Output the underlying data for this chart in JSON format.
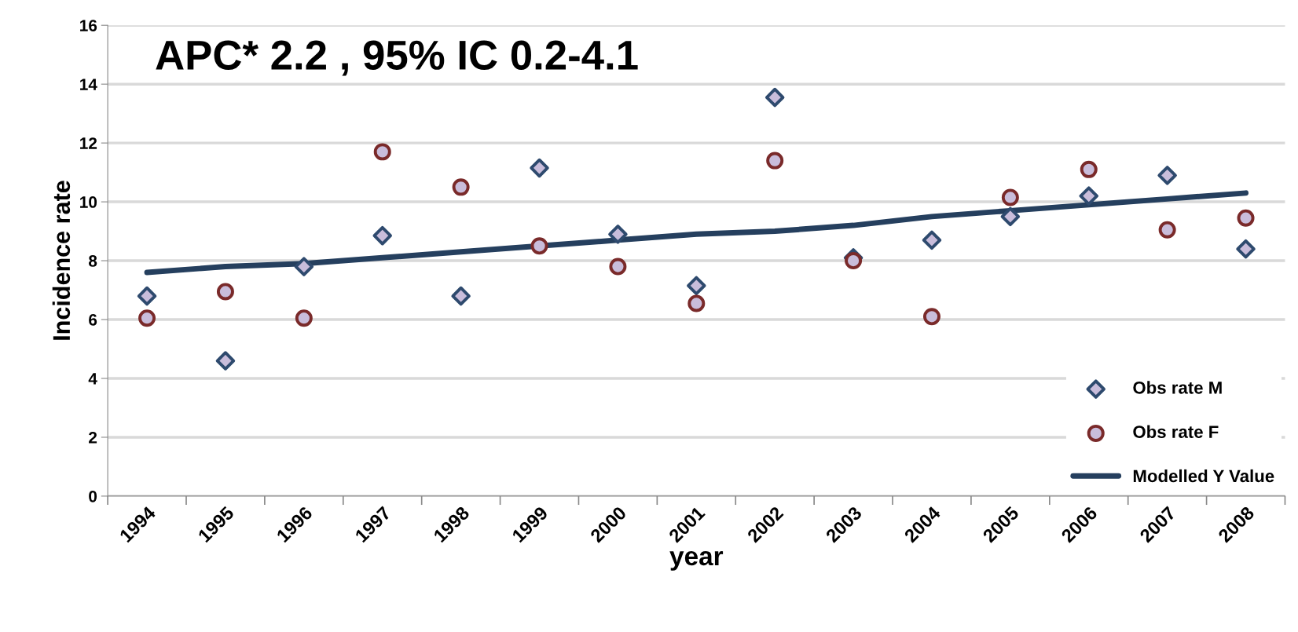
{
  "chart_data": {
    "type": "scatter",
    "title": "APC* 2.2 , 95% IC 0.2-4.1",
    "xlabel": "year",
    "ylabel": "Incidence rate",
    "categories": [
      "1994",
      "1995",
      "1996",
      "1997",
      "1998",
      "1999",
      "2000",
      "2001",
      "2002",
      "2003",
      "2004",
      "2005",
      "2006",
      "2007",
      "2008"
    ],
    "series": [
      {
        "name": "Obs rate M",
        "marker": "diamond",
        "color": "#c9bddb",
        "values": [
          6.8,
          4.6,
          7.8,
          8.85,
          6.8,
          11.15,
          8.9,
          7.15,
          13.55,
          8.1,
          8.7,
          9.5,
          10.2,
          10.9,
          8.4
        ]
      },
      {
        "name": "Obs rate F",
        "marker": "circle",
        "color": "#c9bddb",
        "values": [
          6.05,
          6.95,
          6.05,
          11.7,
          10.5,
          8.5,
          7.8,
          6.55,
          11.4,
          8.0,
          6.1,
          10.15,
          11.1,
          9.05,
          9.45
        ]
      },
      {
        "name": "Modelled Y Value",
        "type": "line",
        "marker": "none",
        "color": "#253f5e",
        "values": [
          7.6,
          7.8,
          7.9,
          8.1,
          8.3,
          8.5,
          8.7,
          8.9,
          9.0,
          9.2,
          9.5,
          9.7,
          9.9,
          10.1,
          10.3
        ]
      }
    ],
    "ylim": [
      0,
      16
    ],
    "yticks": [
      0,
      2,
      4,
      6,
      8,
      10,
      12,
      14,
      16
    ],
    "grid": "y",
    "legend": "bottom right"
  }
}
